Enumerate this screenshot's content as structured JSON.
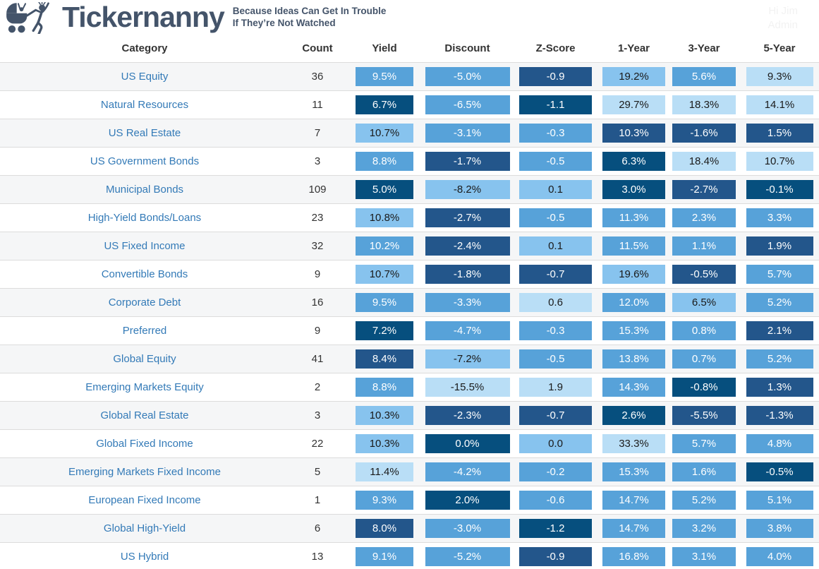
{
  "brand": {
    "title": "Tickernanny",
    "tagline_line1": "Because Ideas Can Get In Trouble",
    "tagline_line2": "If They’re Not Watched",
    "logo_icon": "nanny-pushing-pram-icon"
  },
  "user": {
    "greeting": "Hi Jim",
    "role": "Admin"
  },
  "colors": {
    "brand": "#44546a",
    "link": "#337ab7",
    "stripe": "#f5f6f7",
    "row_border": "#dcdcdc",
    "header_text": "#333333",
    "user_text": "#f2f2f2",
    "scale": [
      "#b9def6",
      "#87c3ee",
      "#57a2d9",
      "#23568b",
      "#064f7e"
    ],
    "scale_dark_text": "#1a1a1a",
    "scale_light_text": "#ffffff"
  },
  "table": {
    "columns": [
      "Category",
      "Count",
      "Yield",
      "Discount",
      "Z-Score",
      "1-Year",
      "3-Year",
      "5-Year"
    ],
    "rows": [
      {
        "category": "US Equity",
        "count": "36",
        "cells": [
          [
            "9.5%",
            3
          ],
          [
            "-5.0%",
            3
          ],
          [
            "-0.9",
            4
          ],
          [
            "19.2%",
            2
          ],
          [
            "5.6%",
            3
          ],
          [
            "9.3%",
            1
          ]
        ]
      },
      {
        "category": "Natural Resources",
        "count": "11",
        "cells": [
          [
            "6.7%",
            5
          ],
          [
            "-6.5%",
            3
          ],
          [
            "-1.1",
            5
          ],
          [
            "29.7%",
            1
          ],
          [
            "18.3%",
            1
          ],
          [
            "14.1%",
            1
          ]
        ]
      },
      {
        "category": "US Real Estate",
        "count": "7",
        "cells": [
          [
            "10.7%",
            2
          ],
          [
            "-3.1%",
            3
          ],
          [
            "-0.3",
            3
          ],
          [
            "10.3%",
            4
          ],
          [
            "-1.6%",
            4
          ],
          [
            "1.5%",
            4
          ]
        ]
      },
      {
        "category": "US Government Bonds",
        "count": "3",
        "cells": [
          [
            "8.8%",
            3
          ],
          [
            "-1.7%",
            4
          ],
          [
            "-0.5",
            3
          ],
          [
            "6.3%",
            5
          ],
          [
            "18.4%",
            1
          ],
          [
            "10.7%",
            1
          ]
        ]
      },
      {
        "category": "Municipal Bonds",
        "count": "109",
        "cells": [
          [
            "5.0%",
            5
          ],
          [
            "-8.2%",
            2
          ],
          [
            "0.1",
            2
          ],
          [
            "3.0%",
            5
          ],
          [
            "-2.7%",
            4
          ],
          [
            "-0.1%",
            5
          ]
        ]
      },
      {
        "category": "High-Yield Bonds/Loans",
        "count": "23",
        "cells": [
          [
            "10.8%",
            2
          ],
          [
            "-2.7%",
            4
          ],
          [
            "-0.5",
            3
          ],
          [
            "11.3%",
            3
          ],
          [
            "2.3%",
            3
          ],
          [
            "3.3%",
            3
          ]
        ]
      },
      {
        "category": "US Fixed Income",
        "count": "32",
        "cells": [
          [
            "10.2%",
            3
          ],
          [
            "-2.4%",
            4
          ],
          [
            "0.1",
            2
          ],
          [
            "11.5%",
            3
          ],
          [
            "1.1%",
            3
          ],
          [
            "1.9%",
            4
          ]
        ]
      },
      {
        "category": "Convertible Bonds",
        "count": "9",
        "cells": [
          [
            "10.7%",
            2
          ],
          [
            "-1.8%",
            4
          ],
          [
            "-0.7",
            4
          ],
          [
            "19.6%",
            2
          ],
          [
            "-0.5%",
            4
          ],
          [
            "5.7%",
            3
          ]
        ]
      },
      {
        "category": "Corporate Debt",
        "count": "16",
        "cells": [
          [
            "9.5%",
            3
          ],
          [
            "-3.3%",
            3
          ],
          [
            "0.6",
            1
          ],
          [
            "12.0%",
            3
          ],
          [
            "6.5%",
            2
          ],
          [
            "5.2%",
            3
          ]
        ]
      },
      {
        "category": "Preferred",
        "count": "9",
        "cells": [
          [
            "7.2%",
            5
          ],
          [
            "-4.7%",
            3
          ],
          [
            "-0.3",
            3
          ],
          [
            "15.3%",
            3
          ],
          [
            "0.8%",
            3
          ],
          [
            "2.1%",
            4
          ]
        ]
      },
      {
        "category": "Global Equity",
        "count": "41",
        "cells": [
          [
            "8.4%",
            4
          ],
          [
            "-7.2%",
            2
          ],
          [
            "-0.5",
            3
          ],
          [
            "13.8%",
            3
          ],
          [
            "0.7%",
            3
          ],
          [
            "5.2%",
            3
          ]
        ]
      },
      {
        "category": "Emerging Markets Equity",
        "count": "2",
        "cells": [
          [
            "8.8%",
            3
          ],
          [
            "-15.5%",
            1
          ],
          [
            "1.9",
            1
          ],
          [
            "14.3%",
            3
          ],
          [
            "-0.8%",
            5
          ],
          [
            "1.3%",
            4
          ]
        ]
      },
      {
        "category": "Global Real Estate",
        "count": "3",
        "cells": [
          [
            "10.3%",
            2
          ],
          [
            "-2.3%",
            4
          ],
          [
            "-0.7",
            4
          ],
          [
            "2.6%",
            5
          ],
          [
            "-5.5%",
            4
          ],
          [
            "-1.3%",
            4
          ]
        ]
      },
      {
        "category": "Global Fixed Income",
        "count": "22",
        "cells": [
          [
            "10.3%",
            2
          ],
          [
            "0.0%",
            5
          ],
          [
            "0.0",
            2
          ],
          [
            "33.3%",
            1
          ],
          [
            "5.7%",
            3
          ],
          [
            "4.8%",
            3
          ]
        ]
      },
      {
        "category": "Emerging Markets Fixed Income",
        "count": "5",
        "cells": [
          [
            "11.4%",
            1
          ],
          [
            "-4.2%",
            3
          ],
          [
            "-0.2",
            3
          ],
          [
            "15.3%",
            3
          ],
          [
            "1.6%",
            3
          ],
          [
            "-0.5%",
            5
          ]
        ]
      },
      {
        "category": "European Fixed Income",
        "count": "1",
        "cells": [
          [
            "9.3%",
            3
          ],
          [
            "2.0%",
            5
          ],
          [
            "-0.6",
            3
          ],
          [
            "14.7%",
            3
          ],
          [
            "5.2%",
            3
          ],
          [
            "5.1%",
            3
          ]
        ]
      },
      {
        "category": "Global High-Yield",
        "count": "6",
        "cells": [
          [
            "8.0%",
            4
          ],
          [
            "-3.0%",
            3
          ],
          [
            "-1.2",
            5
          ],
          [
            "14.7%",
            3
          ],
          [
            "3.2%",
            3
          ],
          [
            "3.8%",
            3
          ]
        ]
      },
      {
        "category": "US Hybrid",
        "count": "13",
        "cells": [
          [
            "9.1%",
            3
          ],
          [
            "-5.2%",
            3
          ],
          [
            "-0.9",
            4
          ],
          [
            "16.8%",
            3
          ],
          [
            "3.1%",
            3
          ],
          [
            "4.0%",
            3
          ]
        ]
      }
    ]
  }
}
